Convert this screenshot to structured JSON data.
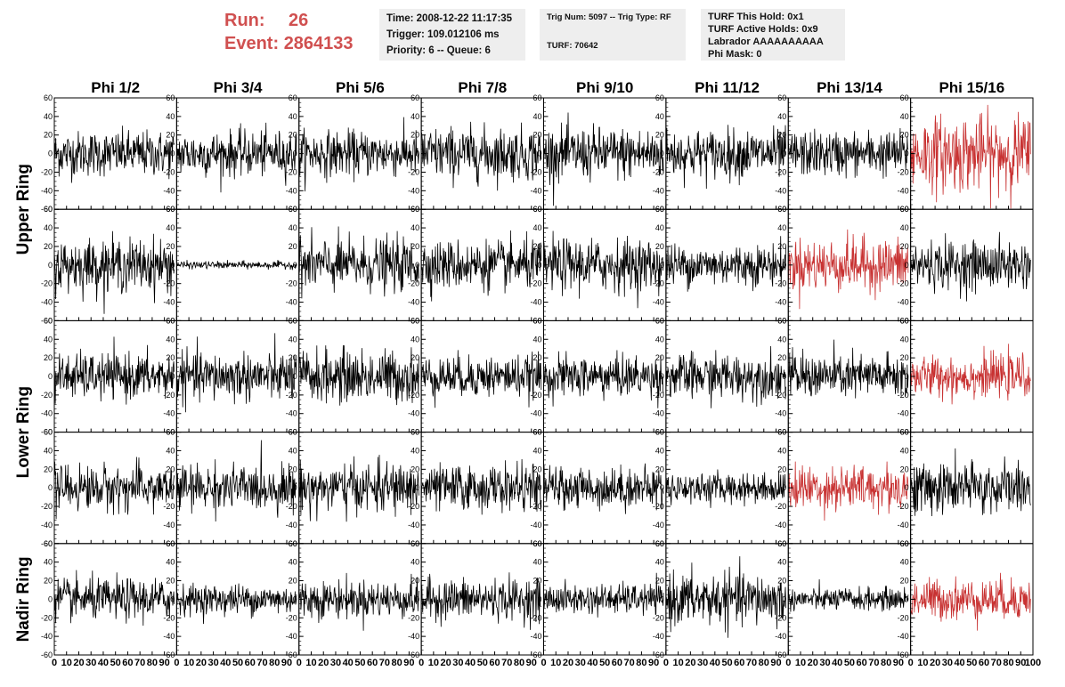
{
  "header": {
    "run_label": "Run:",
    "run_value": "26",
    "event_label": "Event:",
    "event_value": "2864133"
  },
  "info": {
    "time": "Time: 2008-12-22 11:17:35",
    "trigger": "Trigger: 109.012106 ms",
    "priority": "Priority: 6 -- Queue: 6",
    "trig_num": "Trig Num: 5097 -- Trig Type: RF",
    "turf": "TURF: 70642",
    "turf_this_hold": "TURF This Hold: 0x1",
    "turf_active_holds": "TURF Active Holds: 0x9",
    "labrador": "Labrador AAAAAAAAAA",
    "phi_mask": "Phi Mask: 0"
  },
  "chart_data": {
    "type": "line",
    "columns": [
      "Phi 1/2",
      "Phi 3/4",
      "Phi 5/6",
      "Phi 7/8",
      "Phi 9/10",
      "Phi 11/12",
      "Phi 13/14",
      "Phi 15/16"
    ],
    "ring_labels": [
      "Upper Ring",
      "Lower Ring",
      "Nadir Ring"
    ],
    "rows": 5,
    "xlim": [
      0,
      100
    ],
    "ylim": [
      -60,
      60
    ],
    "y_ticks": [
      -60,
      -40,
      -20,
      0,
      20,
      40,
      60
    ],
    "x_ticks": [
      0,
      10,
      20,
      30,
      40,
      50,
      60,
      70,
      80,
      90,
      100
    ],
    "samples": 256,
    "colors": {
      "normal": "#000000",
      "triggered": "#c83232"
    },
    "amplitude": [
      [
        12,
        12,
        12,
        14,
        14,
        13,
        12,
        20
      ],
      [
        14,
        2,
        14,
        13,
        14,
        11,
        14,
        13
      ],
      [
        12,
        13,
        14,
        11,
        11,
        12,
        12,
        11
      ],
      [
        12,
        12,
        13,
        12,
        11,
        8,
        12,
        14
      ],
      [
        11,
        8,
        10,
        11,
        8,
        14,
        6,
        11
      ]
    ],
    "triggered": [
      [
        false,
        false,
        false,
        false,
        false,
        false,
        false,
        true
      ],
      [
        false,
        false,
        false,
        false,
        false,
        false,
        true,
        false
      ],
      [
        false,
        false,
        false,
        false,
        false,
        false,
        false,
        true
      ],
      [
        false,
        false,
        false,
        false,
        false,
        false,
        true,
        false
      ],
      [
        false,
        false,
        false,
        false,
        false,
        false,
        false,
        true
      ]
    ]
  }
}
